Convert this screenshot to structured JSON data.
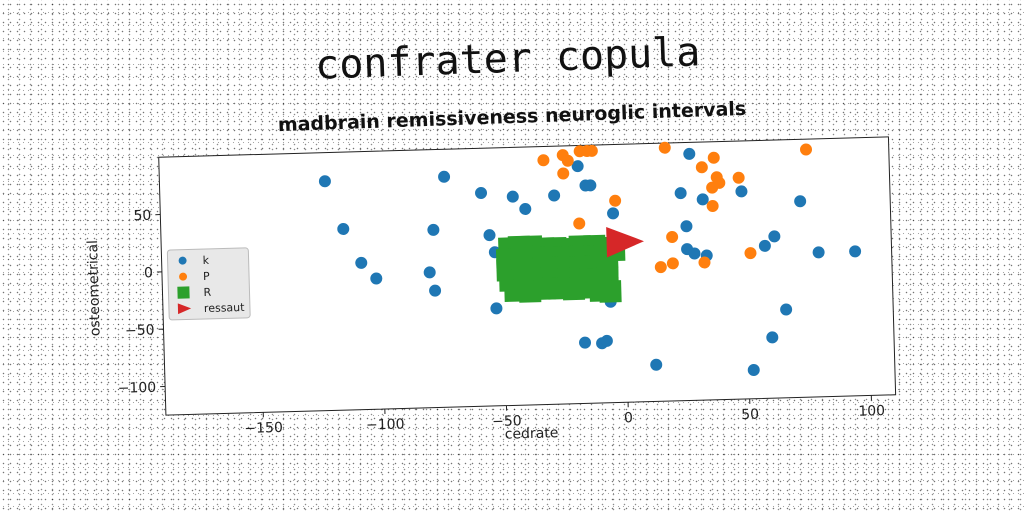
{
  "chart_data": {
    "type": "scatter",
    "title": "confrater copula",
    "subtitle": "madbrain remissiveness neuroglic intervals",
    "xlabel": "cedrate",
    "ylabel": "osteometrical",
    "xlim": [
      -190,
      110
    ],
    "ylim": [
      -125,
      100
    ],
    "xticks": [
      -150,
      -100,
      -50,
      0,
      50,
      100
    ],
    "yticks": [
      50,
      0,
      -50,
      -100
    ],
    "xtick_labels": [
      "−150",
      "−100",
      "−50",
      "0",
      "50",
      "100"
    ],
    "ytick_labels": [
      "50",
      "0",
      "−50",
      "−100"
    ],
    "grid": false,
    "legend_position": "center-left",
    "series": [
      {
        "name": "k",
        "marker": "circle",
        "color": "#1f77b4",
        "points": [
          [
            -122,
            75
          ],
          [
            -115,
            33
          ],
          [
            -108,
            3
          ],
          [
            -102,
            -11
          ],
          [
            -80,
            -7
          ],
          [
            -78,
            -23
          ],
          [
            -78,
            30
          ],
          [
            -73,
            76
          ],
          [
            -58,
            61
          ],
          [
            -55,
            24
          ],
          [
            -53,
            9
          ],
          [
            -53,
            -40
          ],
          [
            -45,
            57
          ],
          [
            -40,
            46
          ],
          [
            -28,
            57
          ],
          [
            -18,
            82
          ],
          [
            -15,
            65
          ],
          [
            -13,
            65
          ],
          [
            -6,
            -37
          ],
          [
            -4,
            40
          ],
          [
            28,
            90
          ],
          [
            24,
            56
          ],
          [
            26,
            27
          ],
          [
            26,
            7
          ],
          [
            29,
            3
          ],
          [
            33,
            50
          ],
          [
            34,
            1
          ],
          [
            49,
            56
          ],
          [
            58,
            8
          ],
          [
            62,
            16
          ],
          [
            73,
            46
          ],
          [
            80,
            1
          ],
          [
            95,
            1
          ],
          [
            -17,
            -72
          ],
          [
            -10,
            -73
          ],
          [
            -8,
            -71
          ],
          [
            12,
            -93
          ],
          [
            52,
            -100
          ],
          [
            60,
            -72
          ],
          [
            66,
            -48
          ]
        ]
      },
      {
        "name": "P",
        "marker": "circle",
        "color": "#ff7f0e",
        "points": [
          [
            -32,
            88
          ],
          [
            -24,
            92
          ],
          [
            -22,
            87
          ],
          [
            -17,
            95
          ],
          [
            -14,
            95
          ],
          [
            -12,
            95
          ],
          [
            -24,
            76
          ],
          [
            -18,
            32
          ],
          [
            -3,
            51
          ],
          [
            18,
            96
          ],
          [
            33,
            78
          ],
          [
            38,
            86
          ],
          [
            37,
            60
          ],
          [
            39,
            69
          ],
          [
            40,
            64
          ],
          [
            48,
            68
          ],
          [
            37,
            44
          ],
          [
            20,
            18
          ],
          [
            15,
            -8
          ],
          [
            20,
            -5
          ],
          [
            33,
            -5
          ],
          [
            52,
            2
          ],
          [
            76,
            91
          ]
        ]
      },
      {
        "name": "R",
        "marker": "square",
        "color": "#2ca02c",
        "points": [
          [
            -47,
            12
          ],
          [
            -43,
            13
          ],
          [
            -38,
            13
          ],
          [
            -33,
            11
          ],
          [
            -28,
            11
          ],
          [
            -23,
            10
          ],
          [
            -18,
            12
          ],
          [
            -12,
            12
          ],
          [
            -8,
            10
          ],
          [
            -4,
            8
          ],
          [
            -48,
            2
          ],
          [
            -42,
            4
          ],
          [
            -36,
            3
          ],
          [
            -30,
            3
          ],
          [
            -25,
            3
          ],
          [
            -18,
            3
          ],
          [
            -12,
            3
          ],
          [
            -7,
            2
          ],
          [
            -48,
            -7
          ],
          [
            -42,
            -6
          ],
          [
            -36,
            -7
          ],
          [
            -30,
            -6
          ],
          [
            -24,
            -6
          ],
          [
            -18,
            -6
          ],
          [
            -12,
            -6
          ],
          [
            -7,
            -7
          ],
          [
            -47,
            -16
          ],
          [
            -41,
            -17
          ],
          [
            -35,
            -15
          ],
          [
            -29,
            -16
          ],
          [
            -23,
            -16
          ],
          [
            -17,
            -17
          ],
          [
            -11,
            -17
          ],
          [
            -7,
            -16
          ],
          [
            -45,
            -25
          ],
          [
            -39,
            -26
          ],
          [
            -33,
            -24
          ],
          [
            -27,
            -24
          ],
          [
            -21,
            -25
          ],
          [
            -15,
            -24
          ],
          [
            -10,
            -27
          ],
          [
            -6,
            -28
          ]
        ]
      },
      {
        "name": "ressaut",
        "marker": "triangle-right",
        "color": "#d62728",
        "points": [
          [
            0,
            15
          ]
        ]
      }
    ]
  }
}
